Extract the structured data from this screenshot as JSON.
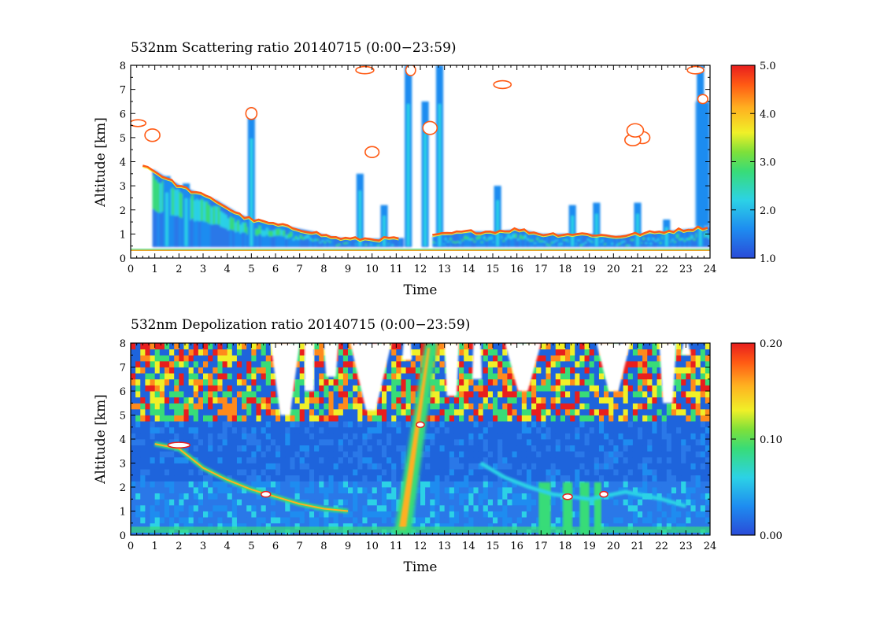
{
  "chart_data": [
    {
      "type": "heatmap",
      "title": "532nm Scattering ratio  20140715 (0:00−23:59)",
      "xlabel": "Time",
      "ylabel": "Altitude [km]",
      "xlim": [
        0,
        24
      ],
      "ylim": [
        0,
        8
      ],
      "x_ticks": [
        "0",
        "1",
        "2",
        "3",
        "4",
        "5",
        "6",
        "7",
        "8",
        "9",
        "10",
        "11",
        "12",
        "13",
        "14",
        "15",
        "16",
        "17",
        "18",
        "19",
        "20",
        "21",
        "22",
        "23",
        "24"
      ],
      "y_ticks": [
        "0",
        "1",
        "2",
        "3",
        "4",
        "5",
        "6",
        "7",
        "8"
      ],
      "colorbar": {
        "min": 1.0,
        "max": 5.0,
        "ticks": [
          "1.0",
          "2.0",
          "3.0",
          "4.0",
          "5.0"
        ]
      },
      "background": "#ffffff",
      "features": {
        "boundary_layer": [
          [
            0.5,
            3.9
          ],
          [
            1.0,
            3.6
          ],
          [
            1.5,
            3.3
          ],
          [
            2.0,
            3.0
          ],
          [
            2.5,
            2.8
          ],
          [
            3.0,
            2.6
          ],
          [
            3.5,
            2.4
          ],
          [
            4.0,
            2.1
          ],
          [
            4.5,
            1.8
          ],
          [
            5.0,
            1.6
          ],
          [
            5.5,
            1.5
          ],
          [
            6.0,
            1.4
          ],
          [
            6.5,
            1.3
          ],
          [
            7.0,
            1.2
          ],
          [
            7.5,
            1.1
          ],
          [
            8.0,
            0.95
          ],
          [
            8.5,
            0.85
          ],
          [
            9.0,
            0.8
          ],
          [
            9.5,
            0.8
          ],
          [
            10.0,
            0.8
          ],
          [
            10.5,
            0.8
          ],
          [
            12.5,
            0.9
          ],
          [
            13.0,
            1.0
          ],
          [
            14.0,
            1.1
          ],
          [
            15.0,
            1.1
          ],
          [
            16.0,
            1.2
          ],
          [
            17.0,
            1.0
          ],
          [
            18.0,
            1.0
          ],
          [
            19.0,
            1.0
          ],
          [
            20.0,
            0.9
          ],
          [
            21.0,
            1.0
          ],
          [
            22.0,
            1.1
          ],
          [
            23.0,
            1.2
          ],
          [
            24.0,
            1.3
          ]
        ],
        "surface_layer_top": 0.4
      }
    },
    {
      "type": "heatmap",
      "title": "532nm Depolization ratio  20140715 (0:00−23:59)",
      "xlabel": "Time",
      "ylabel": "Altitude [km]",
      "xlim": [
        0,
        24
      ],
      "ylim": [
        0,
        8
      ],
      "x_ticks": [
        "0",
        "1",
        "2",
        "3",
        "4",
        "5",
        "6",
        "7",
        "8",
        "9",
        "10",
        "11",
        "12",
        "13",
        "14",
        "15",
        "16",
        "17",
        "18",
        "19",
        "20",
        "21",
        "22",
        "23",
        "24"
      ],
      "y_ticks": [
        "0",
        "1",
        "2",
        "3",
        "4",
        "5",
        "6",
        "7",
        "8"
      ],
      "colorbar": {
        "min": 0.0,
        "max": 0.2,
        "ticks": [
          "0.00",
          "0.10",
          "0.20"
        ]
      },
      "background": "#1e64dc"
    }
  ],
  "colormap": [
    "#2a4bd8",
    "#1e8cf0",
    "#2cd2e6",
    "#38dc78",
    "#7ee03a",
    "#f0f028",
    "#ffb020",
    "#ff5a14",
    "#e81e1e"
  ]
}
